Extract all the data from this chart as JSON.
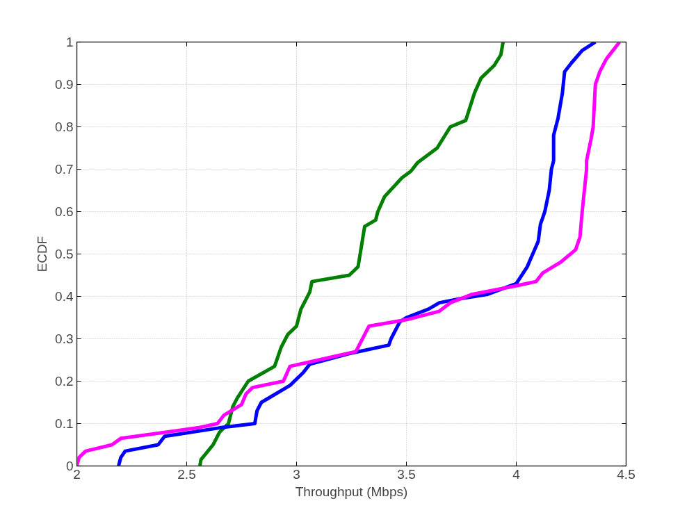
{
  "chart_data": {
    "type": "line",
    "xlabel": "Throughput (Mbps)",
    "ylabel": "ECDF",
    "xlim": [
      2,
      4.5
    ],
    "xticks": [
      2,
      2.5,
      3,
      3.5,
      4,
      4.5
    ],
    "ylim": [
      0,
      1
    ],
    "yticks": [
      0,
      0.1,
      0.2,
      0.3,
      0.4,
      0.5,
      0.6,
      0.7,
      0.8,
      0.9,
      1
    ],
    "grid": true,
    "line_style": "solid",
    "marker": "none",
    "series": [
      {
        "color": "#007f00",
        "x": [
          2.56,
          2.565,
          2.62,
          2.65,
          2.69,
          2.71,
          2.73,
          2.78,
          2.9,
          2.93,
          2.96,
          3.0,
          3.02,
          3.06,
          3.07,
          3.24,
          3.28,
          3.31,
          3.36,
          3.37,
          3.4,
          3.48,
          3.52,
          3.55,
          3.64,
          3.7,
          3.77,
          3.81,
          3.84,
          3.9,
          3.93,
          3.94
        ],
        "values": [
          0,
          0.015,
          0.05,
          0.08,
          0.1,
          0.14,
          0.16,
          0.2,
          0.235,
          0.28,
          0.31,
          0.33,
          0.37,
          0.41,
          0.435,
          0.45,
          0.47,
          0.565,
          0.58,
          0.6,
          0.635,
          0.68,
          0.695,
          0.715,
          0.75,
          0.8,
          0.815,
          0.88,
          0.915,
          0.945,
          0.97,
          1.0
        ]
      },
      {
        "color": "#0000ff",
        "x": [
          2.19,
          2.2,
          2.22,
          2.37,
          2.4,
          2.65,
          2.81,
          2.82,
          2.84,
          2.97,
          3.03,
          3.06,
          3.24,
          3.42,
          3.43,
          3.47,
          3.5,
          3.6,
          3.65,
          3.75,
          3.87,
          4.0,
          4.05,
          4.1,
          4.11,
          4.13,
          4.15,
          4.16,
          4.17,
          4.17,
          4.19,
          4.2,
          4.21,
          4.22,
          4.25,
          4.3,
          4.36
        ],
        "values": [
          0,
          0.02,
          0.035,
          0.05,
          0.07,
          0.09,
          0.1,
          0.13,
          0.15,
          0.19,
          0.22,
          0.24,
          0.265,
          0.285,
          0.3,
          0.34,
          0.35,
          0.37,
          0.385,
          0.395,
          0.405,
          0.43,
          0.47,
          0.53,
          0.57,
          0.6,
          0.65,
          0.7,
          0.72,
          0.78,
          0.82,
          0.85,
          0.88,
          0.93,
          0.95,
          0.98,
          1.0
        ]
      },
      {
        "color": "#ff00ff",
        "x": [
          2.0,
          2.01,
          2.04,
          2.16,
          2.2,
          2.55,
          2.64,
          2.67,
          2.75,
          2.77,
          2.8,
          2.94,
          2.97,
          3.1,
          3.27,
          3.33,
          3.5,
          3.65,
          3.7,
          3.8,
          4.0,
          4.09,
          4.12,
          4.2,
          4.27,
          4.29,
          4.3,
          4.31,
          4.32,
          4.32,
          4.34,
          4.35,
          4.36,
          4.38,
          4.41,
          4.47
        ],
        "values": [
          0,
          0.02,
          0.035,
          0.05,
          0.065,
          0.09,
          0.1,
          0.12,
          0.145,
          0.17,
          0.185,
          0.2,
          0.235,
          0.25,
          0.27,
          0.33,
          0.345,
          0.365,
          0.385,
          0.405,
          0.425,
          0.435,
          0.455,
          0.48,
          0.51,
          0.54,
          0.6,
          0.65,
          0.7,
          0.72,
          0.77,
          0.8,
          0.9,
          0.93,
          0.96,
          1.0
        ]
      }
    ]
  }
}
